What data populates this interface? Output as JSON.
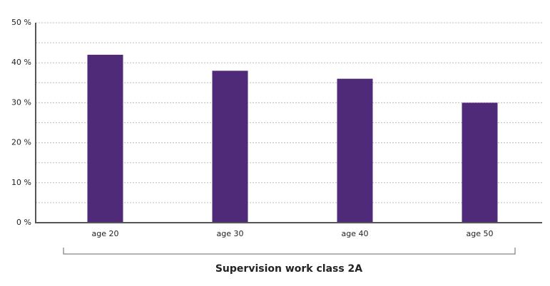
{
  "chart_data": {
    "type": "bar",
    "x_label": "Supervision work class 2A",
    "categories": [
      "age 20",
      "age 30",
      "age 40",
      "age 50"
    ],
    "values": [
      42,
      38,
      36,
      30
    ],
    "color": "#4f2a78",
    "ylim": [
      0,
      50
    ],
    "yticks": [
      {
        "value": 0,
        "label": "0 %"
      },
      {
        "value": 10,
        "label": "10 %"
      },
      {
        "value": 20,
        "label": "20 %"
      },
      {
        "value": 30,
        "label": "30 %"
      },
      {
        "value": 40,
        "label": "40 %"
      },
      {
        "value": 50,
        "label": "50 %"
      }
    ],
    "minor_yticks": [
      5,
      15,
      25,
      35,
      45
    ],
    "grid": true
  }
}
